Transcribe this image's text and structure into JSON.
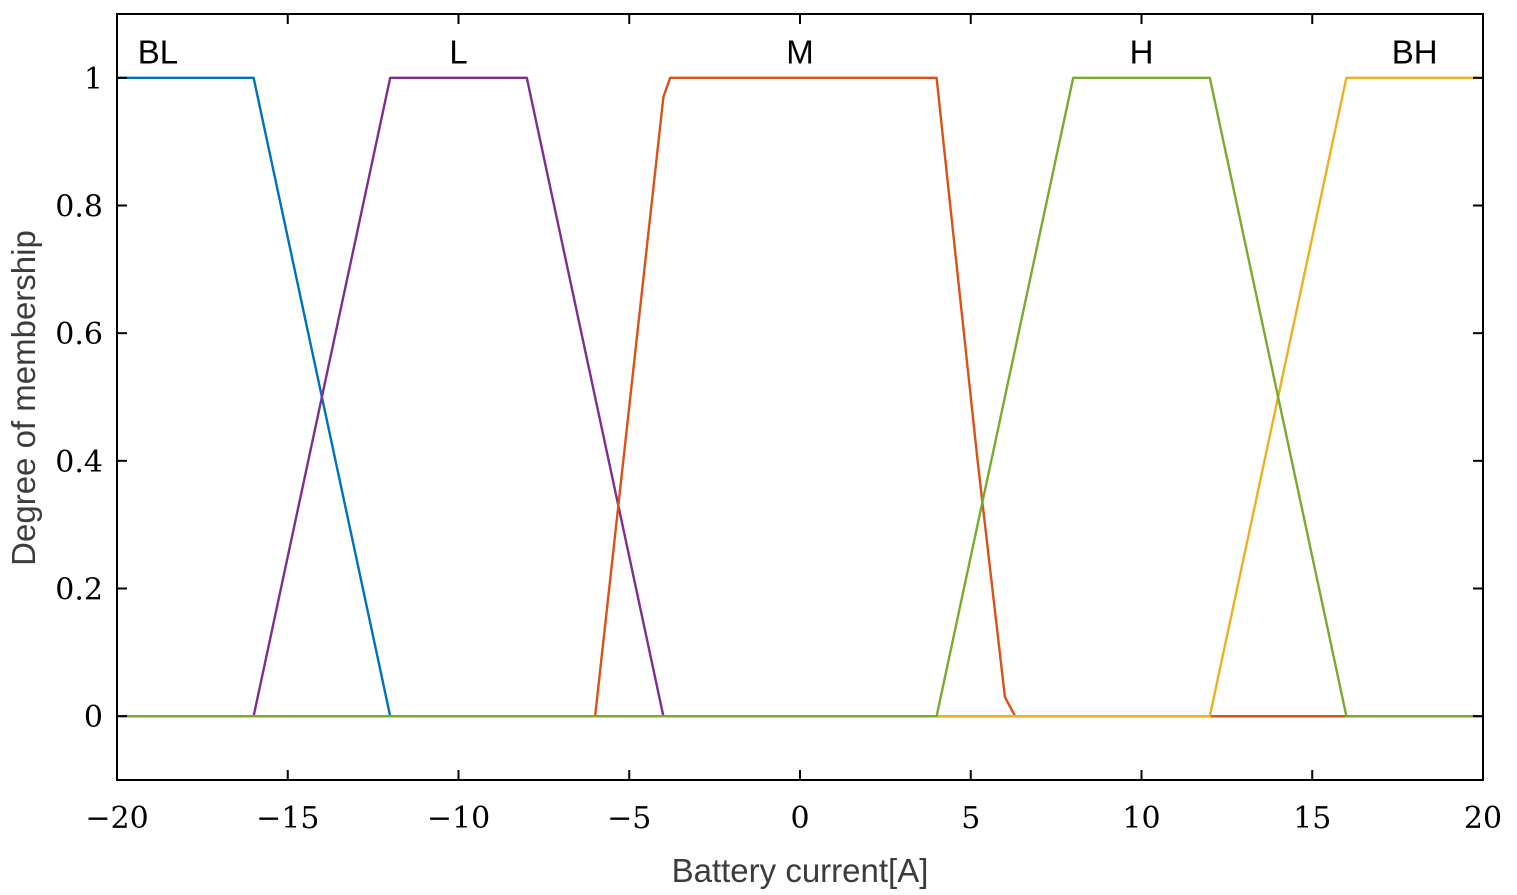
{
  "chart_data": {
    "type": "line",
    "title": "",
    "xlabel": "Battery current[A]",
    "ylabel": "Degree of membership",
    "xlim": [
      -20,
      20
    ],
    "ylim": [
      -0.1,
      1.1
    ],
    "xticks": [
      -20,
      -15,
      -10,
      -5,
      0,
      5,
      10,
      15,
      20
    ],
    "xtick_labels": [
      "−20",
      "−15",
      "−10",
      "−5",
      "0",
      "5",
      "10",
      "15",
      "20"
    ],
    "yticks": [
      0,
      0.2,
      0.4,
      0.6,
      0.8,
      1
    ],
    "ytick_labels": [
      "0",
      "0.2",
      "0.4",
      "0.6",
      "0.8",
      "1"
    ],
    "grid": false,
    "legend": "none",
    "series": [
      {
        "name": "BL",
        "color": "#0072bd",
        "points": [
          [
            -20,
            1
          ],
          [
            -16,
            1
          ],
          [
            -12,
            0
          ],
          [
            20,
            0
          ]
        ]
      },
      {
        "name": "L",
        "color": "#7e2f8e",
        "points": [
          [
            -20,
            0
          ],
          [
            -16,
            0
          ],
          [
            -12,
            1
          ],
          [
            -8,
            1
          ],
          [
            -4,
            0
          ],
          [
            20,
            0
          ]
        ]
      },
      {
        "name": "M",
        "color": "#d95319",
        "points": [
          [
            -20,
            0
          ],
          [
            -6,
            0
          ],
          [
            -4,
            0.97
          ],
          [
            -3.8,
            1
          ],
          [
            4,
            1
          ],
          [
            4.2,
            0.9
          ],
          [
            5.2,
            0.4
          ],
          [
            6,
            0.03
          ],
          [
            6.3,
            0
          ],
          [
            20,
            0
          ]
        ]
      },
      {
        "name": "BH",
        "color": "#edb120",
        "points": [
          [
            -20,
            0
          ],
          [
            12,
            0
          ],
          [
            16,
            1
          ],
          [
            20,
            1
          ]
        ]
      },
      {
        "name": "H",
        "color": "#77ac30",
        "points": [
          [
            -20,
            0
          ],
          [
            4,
            0
          ],
          [
            8,
            1
          ],
          [
            12,
            1
          ],
          [
            16,
            0
          ],
          [
            20,
            0
          ]
        ]
      }
    ],
    "annotations": [
      {
        "text": "BL",
        "x": -18.8,
        "y": 1.04
      },
      {
        "text": "L",
        "x": -10,
        "y": 1.04
      },
      {
        "text": "M",
        "x": 0,
        "y": 1.04
      },
      {
        "text": "H",
        "x": 10,
        "y": 1.04
      },
      {
        "text": "BH",
        "x": 18,
        "y": 1.04
      }
    ]
  }
}
